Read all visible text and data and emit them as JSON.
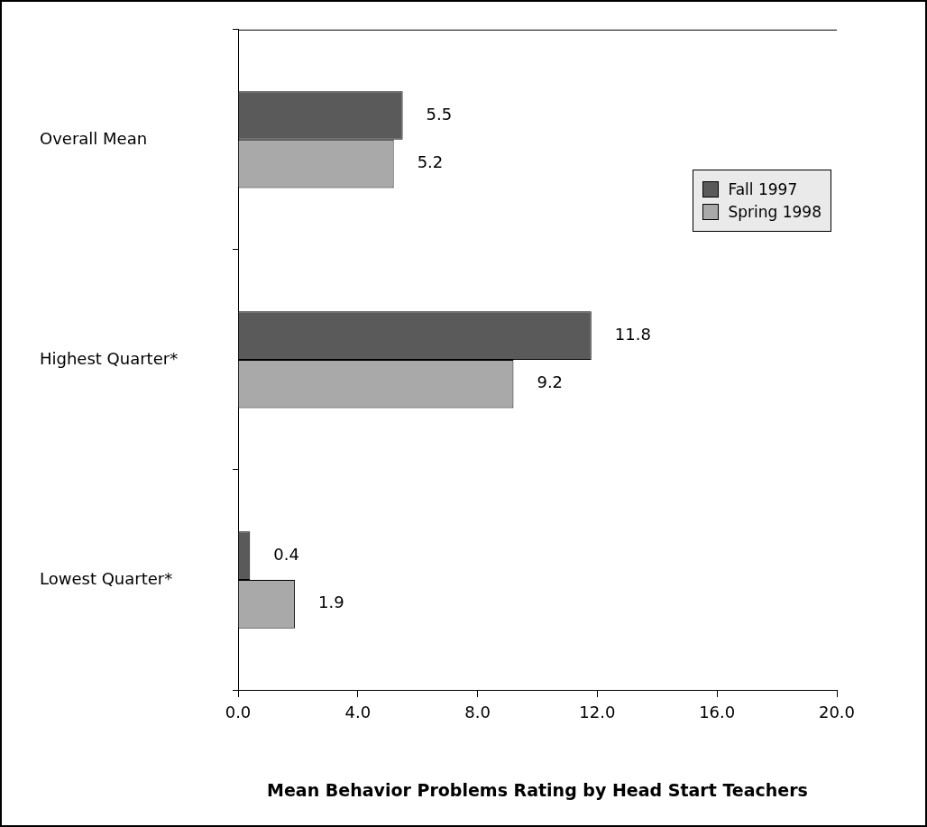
{
  "chart_data": {
    "type": "bar",
    "orientation": "horizontal",
    "xlabel": "Mean Behavior Problems Rating by Head Start Teachers",
    "categories": [
      "Overall Mean",
      "Highest Quarter*",
      "Lowest Quarter*"
    ],
    "series": [
      {
        "name": "Fall 1997",
        "color": "#5a5a5a",
        "values": [
          5.5,
          11.8,
          0.4
        ]
      },
      {
        "name": "Spring 1998",
        "color": "#a9a9a9",
        "values": [
          5.2,
          9.2,
          1.9
        ]
      }
    ],
    "xlim": [
      0,
      20
    ],
    "xticks": [
      {
        "value": 0,
        "label": "0.0"
      },
      {
        "value": 4,
        "label": "4.0"
      },
      {
        "value": 8,
        "label": "8.0"
      },
      {
        "value": 12,
        "label": "12.0"
      },
      {
        "value": 16,
        "label": "16.0"
      },
      {
        "value": 20,
        "label": "20.0"
      }
    ],
    "data_labels": true,
    "grid": false,
    "legend": "right"
  }
}
